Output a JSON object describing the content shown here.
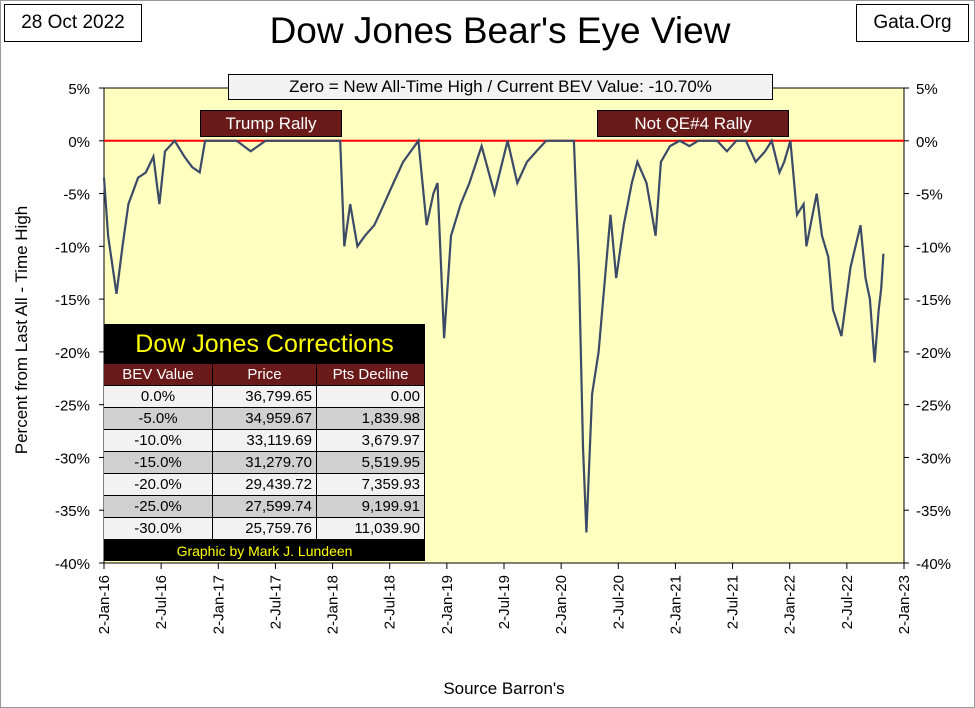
{
  "header": {
    "date": "28 Oct 2022",
    "source_site": "Gata.Org",
    "title": "Dow Jones Bear's Eye View",
    "subtitle": "Zero = New All-Time High / Current BEV Value:  -10.70%"
  },
  "annotations": {
    "trump_rally": "Trump Rally",
    "not_qe4_rally": "Not QE#4 Rally"
  },
  "corrections_table": {
    "title": "Dow Jones Corrections",
    "headers": [
      "BEV Value",
      "Price",
      "Pts Decline"
    ],
    "rows": [
      [
        "0.0%",
        "36,799.65",
        "0.00"
      ],
      [
        "-5.0%",
        "34,959.67",
        "1,839.98"
      ],
      [
        "-10.0%",
        "33,119.69",
        "3,679.97"
      ],
      [
        "-15.0%",
        "31,279.70",
        "5,519.95"
      ],
      [
        "-20.0%",
        "29,439.72",
        "7,359.93"
      ],
      [
        "-25.0%",
        "27,599.74",
        "9,199.91"
      ],
      [
        "-30.0%",
        "25,759.76",
        "11,039.90"
      ]
    ],
    "footer": "Graphic by Mark J. Lundeen"
  },
  "colors": {
    "plot_background": "#ffffc0",
    "series_line": "#3b4a66",
    "zero_line": "#ff0000",
    "table_header": "#6b1a1a",
    "table_title_text": "#ffff00",
    "row_light": "#f2f2f2",
    "row_dark": "#d0d0d0"
  },
  "chart_data": {
    "type": "line",
    "title": "Dow Jones Bear's Eye View",
    "xlabel": "Source Barron's",
    "ylabel": "Percent from Last All - Time High",
    "ylim": [
      -40,
      5
    ],
    "yticks": [
      5,
      0,
      -5,
      -10,
      -15,
      -20,
      -25,
      -30,
      -35,
      -40
    ],
    "ytick_labels": [
      "5%",
      "0%",
      "-5%",
      "-10%",
      "-15%",
      "-20%",
      "-25%",
      "-30%",
      "-35%",
      "-40%"
    ],
    "xlim": [
      "2016-01-02",
      "2023-01-02"
    ],
    "xtick_labels": [
      "2-Jan-16",
      "2-Jul-16",
      "2-Jan-17",
      "2-Jul-17",
      "2-Jan-18",
      "2-Jul-18",
      "2-Jan-19",
      "2-Jul-19",
      "2-Jan-20",
      "2-Jul-20",
      "2-Jan-21",
      "2-Jul-21",
      "2-Jan-22",
      "2-Jul-22",
      "2-Jan-23"
    ],
    "grid": false,
    "reference_line": 0,
    "series": [
      {
        "x": [
          "2016-01-02",
          "2016-01-15",
          "2016-02-11",
          "2016-03-01",
          "2016-03-20",
          "2016-04-20",
          "2016-05-15",
          "2016-06-08",
          "2016-06-27",
          "2016-07-15",
          "2016-08-15",
          "2016-09-15",
          "2016-10-10",
          "2016-11-03",
          "2016-11-20",
          "2016-12-15",
          "2017-01-15",
          "2017-03-01",
          "2017-04-15",
          "2017-06-01",
          "2017-07-15",
          "2017-09-01",
          "2017-10-15",
          "2017-12-01",
          "2018-01-26",
          "2018-02-08",
          "2018-02-27",
          "2018-03-22",
          "2018-04-15",
          "2018-05-15",
          "2018-06-15",
          "2018-07-15",
          "2018-08-15",
          "2018-10-03",
          "2018-10-29",
          "2018-11-20",
          "2018-12-03",
          "2018-12-24",
          "2019-01-15",
          "2019-02-15",
          "2019-03-15",
          "2019-04-23",
          "2019-06-03",
          "2019-07-15",
          "2019-08-15",
          "2019-09-15",
          "2019-10-15",
          "2019-11-15",
          "2019-12-15",
          "2020-01-17",
          "2020-02-12",
          "2020-02-28",
          "2020-03-12",
          "2020-03-23",
          "2020-04-10",
          "2020-05-01",
          "2020-06-08",
          "2020-06-26",
          "2020-07-20",
          "2020-08-15",
          "2020-09-02",
          "2020-10-01",
          "2020-10-30",
          "2020-11-16",
          "2020-12-15",
          "2021-01-15",
          "2021-02-15",
          "2021-03-15",
          "2021-04-15",
          "2021-05-15",
          "2021-06-15",
          "2021-07-15",
          "2021-08-15",
          "2021-09-15",
          "2021-10-15",
          "2021-11-05",
          "2021-11-30",
          "2021-12-15",
          "2022-01-04",
          "2022-01-25",
          "2022-02-15",
          "2022-02-24",
          "2022-03-29",
          "2022-04-15",
          "2022-05-05",
          "2022-05-20",
          "2022-06-16",
          "2022-07-15",
          "2022-08-16",
          "2022-09-01",
          "2022-09-15",
          "2022-09-30",
          "2022-10-13",
          "2022-10-21",
          "2022-10-28"
        ],
        "values": [
          -3.5,
          -9,
          -14.5,
          -10,
          -6,
          -3.5,
          -3,
          -1.5,
          -6,
          -1,
          0,
          -1.5,
          -2.5,
          -3,
          0,
          0,
          0,
          0,
          -1,
          0,
          0,
          0,
          0,
          0,
          0,
          -10,
          -6,
          -10,
          -9,
          -8,
          -6,
          -4,
          -2,
          0,
          -8,
          -5,
          -4,
          -18.7,
          -9,
          -6,
          -4,
          -0.5,
          -5,
          0,
          -4,
          -2,
          -1,
          0,
          0,
          0,
          0,
          -12,
          -29,
          -37.1,
          -24,
          -20,
          -7,
          -13,
          -8,
          -4,
          -2,
          -4,
          -9,
          -2,
          -0.5,
          0,
          -0.5,
          0,
          0,
          0,
          -1,
          0,
          0,
          -2,
          -1,
          0,
          -3,
          -2,
          0,
          -7,
          -6,
          -10,
          -5,
          -9,
          -11,
          -16,
          -18.5,
          -12,
          -8,
          -13,
          -15,
          -21,
          -16,
          -14,
          -10.7
        ]
      }
    ]
  }
}
